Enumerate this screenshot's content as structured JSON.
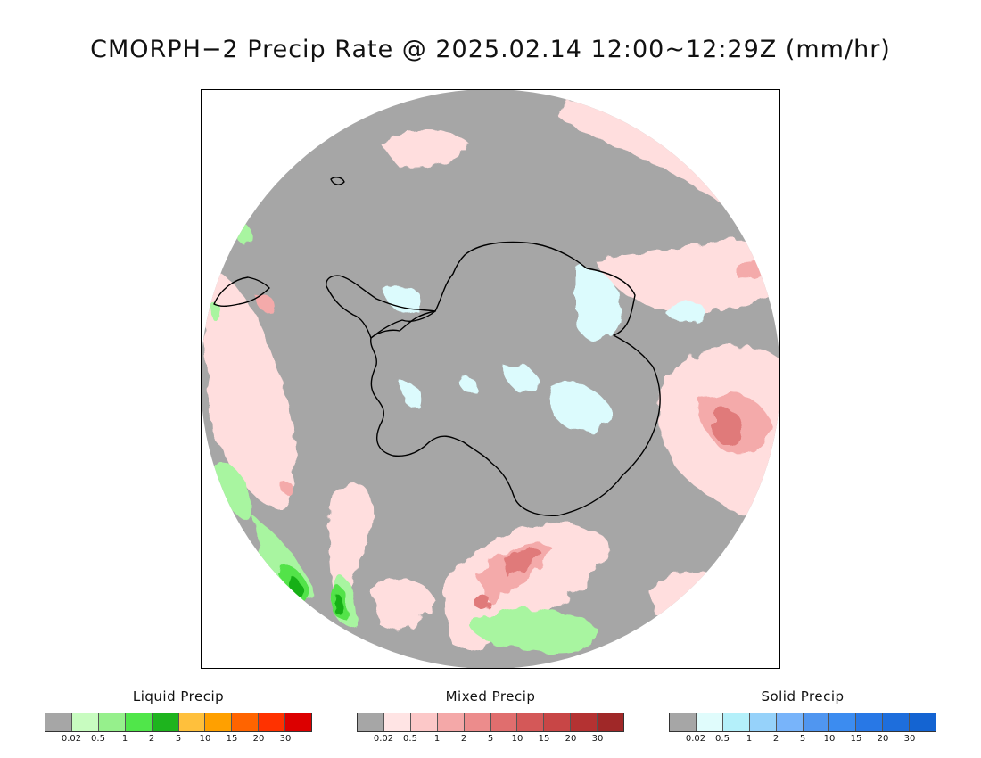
{
  "title": "CMORPH−2 Precip Rate @ 2025.02.14 12:00~12:29Z (mm/hr)",
  "map": {
    "projection": "south-polar-stereographic",
    "colors": {
      "no_precip": "#a6a6a6",
      "ocean_edge": "#ffffff",
      "coast": "#000000",
      "mixed_light": "#ffdede",
      "mixed_mid": "#f4aaaa",
      "mixed_strong": "#e07a7a",
      "solid_light": "#dcfbfd",
      "liquid_light": "#a8f5a0",
      "liquid_mid": "#52e34a",
      "liquid_strong": "#18b018"
    }
  },
  "legends": [
    {
      "title": "Liquid Precip",
      "colors": [
        "#a6a6a6",
        "#c8fcc0",
        "#96f08c",
        "#50e64a",
        "#1eb41e",
        "#ffc03c",
        "#ffa000",
        "#ff6400",
        "#ff3200",
        "#dc0000"
      ],
      "ticks": [
        "0.02",
        "0.5",
        "1",
        "2",
        "5",
        "10",
        "15",
        "20",
        "30"
      ]
    },
    {
      "title": "Mixed Precip",
      "colors": [
        "#a6a6a6",
        "#ffe4e4",
        "#fcc8c8",
        "#f4a8a8",
        "#ec8c8c",
        "#e06e6e",
        "#d45858",
        "#c84646",
        "#b43232",
        "#a02828"
      ],
      "ticks": [
        "0.02",
        "0.5",
        "1",
        "2",
        "5",
        "10",
        "15",
        "20",
        "30"
      ]
    },
    {
      "title": "Solid Precip",
      "colors": [
        "#a6a6a6",
        "#e0fcfc",
        "#b4f0fa",
        "#96d2fa",
        "#78b4fa",
        "#5096f0",
        "#3c8cf0",
        "#2878e6",
        "#1e6edc",
        "#1464d2"
      ],
      "ticks": [
        "0.02",
        "0.5",
        "1",
        "2",
        "5",
        "10",
        "15",
        "20",
        "30"
      ]
    }
  ]
}
